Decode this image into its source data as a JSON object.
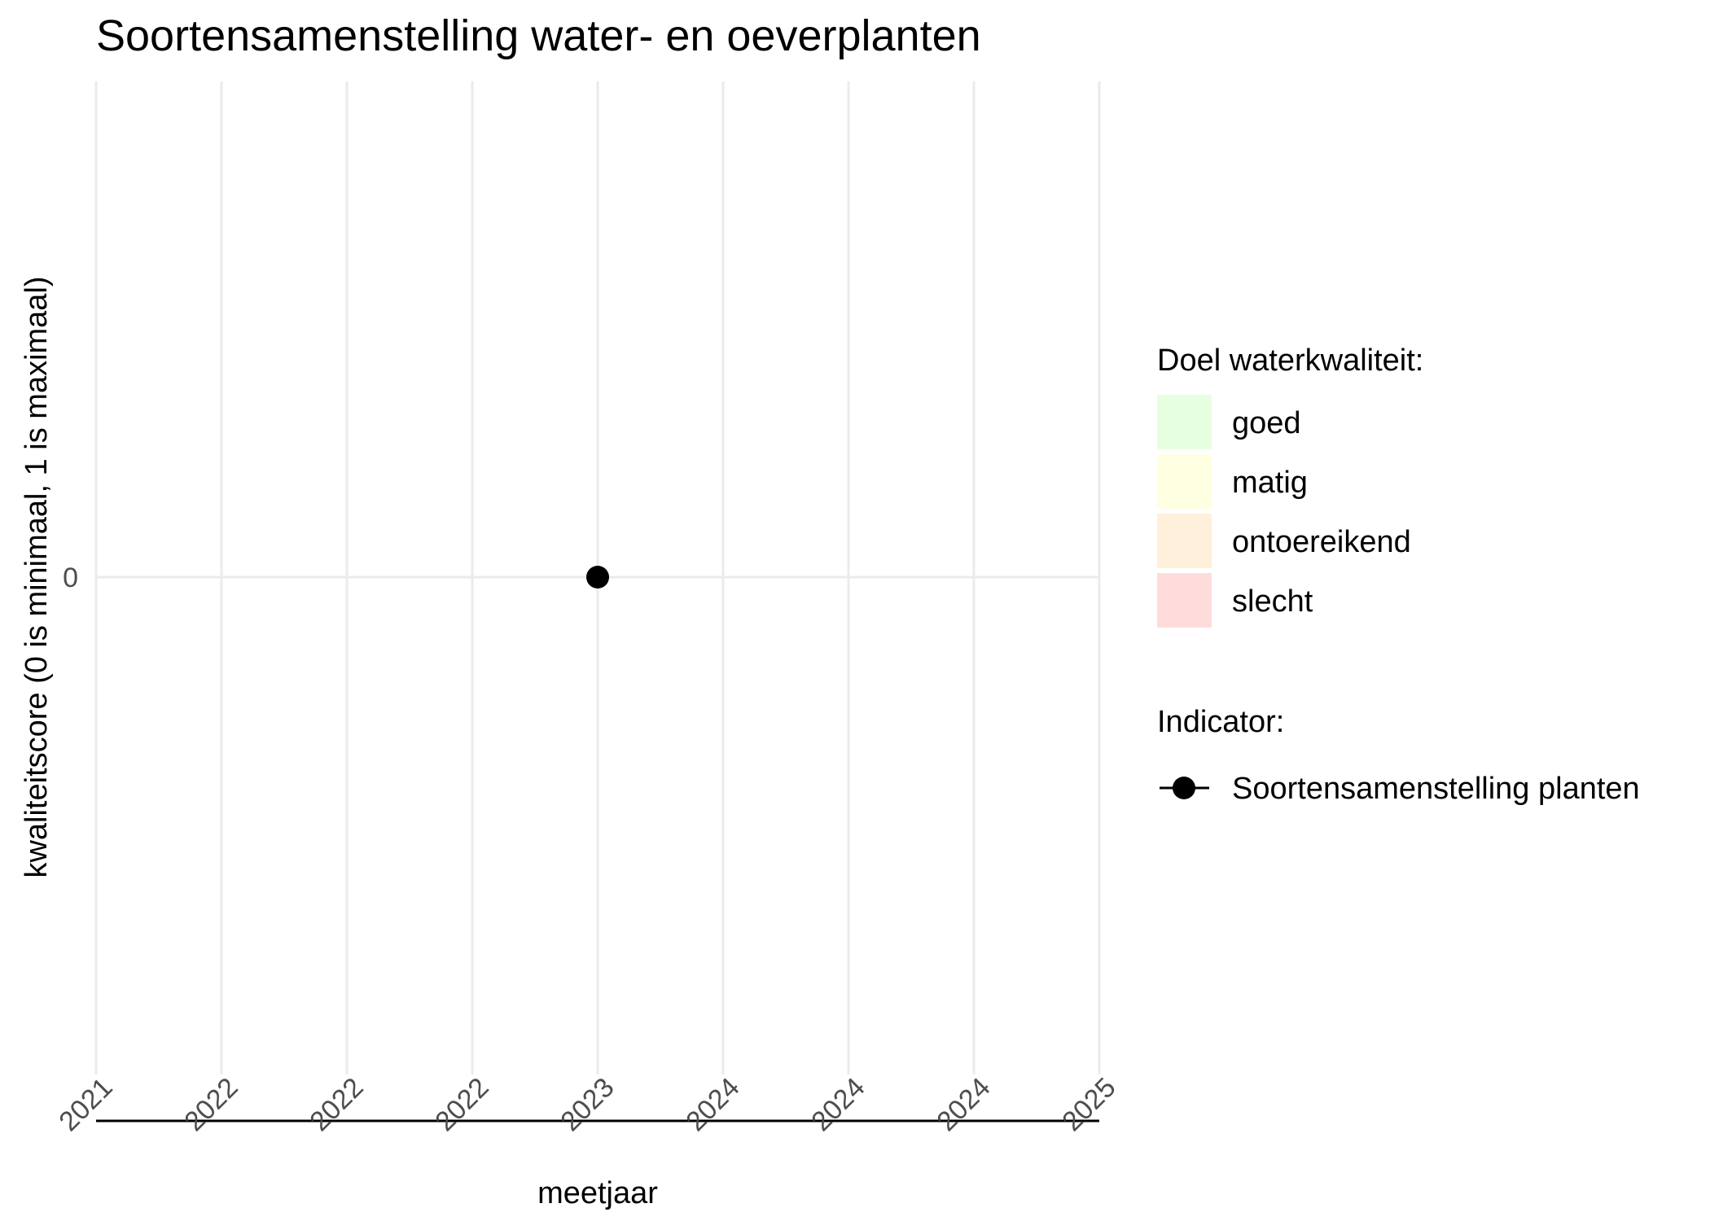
{
  "chart_data": {
    "type": "scatter",
    "title": "Soortensamenstelling water- en oeverplanten",
    "xlabel": "meetjaar",
    "ylabel": "kwaliteitscore (0 is minimaal, 1 is maximaal)",
    "x_tick_labels": [
      "2021",
      "2022",
      "2022",
      "2022",
      "2023",
      "2024",
      "2024",
      "2024",
      "2025"
    ],
    "y_tick_labels": [
      "0"
    ],
    "grid": true,
    "series": [
      {
        "name": "Soortensamenstelling planten",
        "color": "#000000",
        "points": [
          {
            "x": "2023",
            "y": 0
          }
        ]
      }
    ],
    "legend": {
      "placement": "right",
      "fill_title": "Doel waterkwaliteit:",
      "fill_items": [
        {
          "label": "goed",
          "color": "#E6FFE1"
        },
        {
          "label": "matig",
          "color": "#FFFFE1"
        },
        {
          "label": "ontoereikend",
          "color": "#FFF0DC"
        },
        {
          "label": "slecht",
          "color": "#FFDCDC"
        }
      ],
      "indicator_title": "Indicator:",
      "indicator_items": [
        {
          "label": "Soortensamenstelling planten"
        }
      ]
    }
  }
}
